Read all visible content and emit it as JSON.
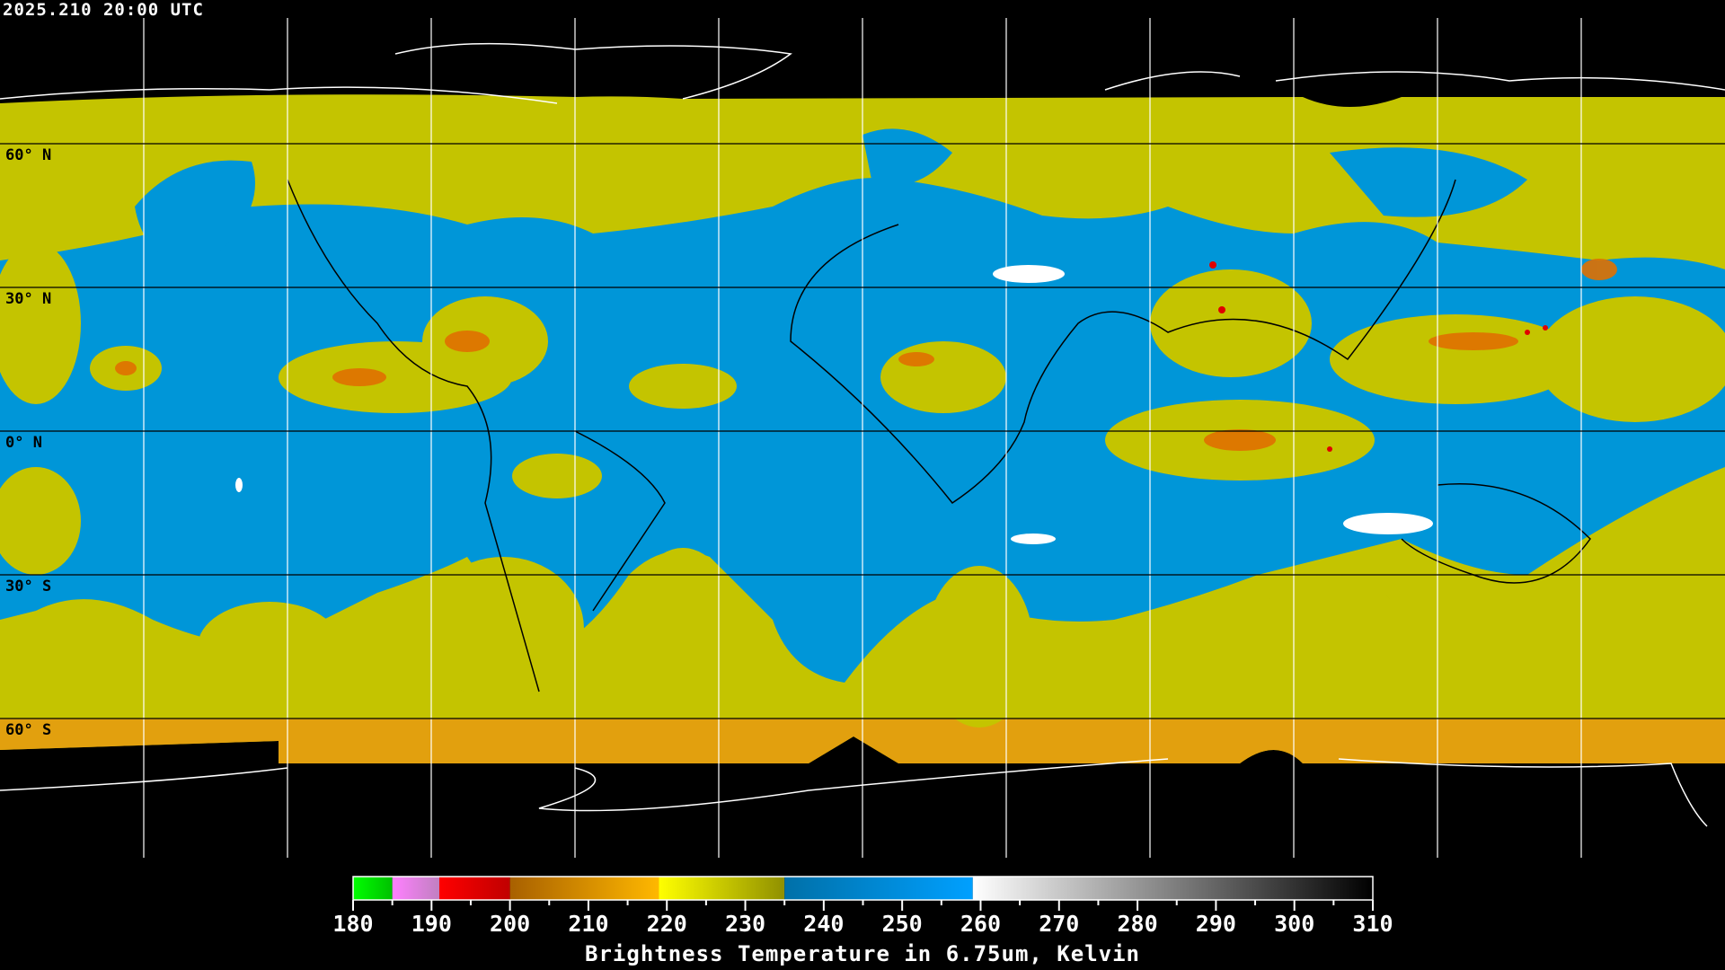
{
  "timestamp": "2025.210 20:00 UTC",
  "lat_labels": [
    "60° N",
    "30° N",
    "0° N",
    "30° S",
    "60° S"
  ],
  "colors": {
    "cloud_cold": "#c8c800",
    "clear_moist": "#0096dc",
    "very_cold": "#e07000",
    "extreme": "#e00000",
    "warm_dry": "#ffffff",
    "grid": "#ffffff",
    "coast": "#000000"
  },
  "colorbar": {
    "title": "Brightness Temperature in 6.75um, Kelvin",
    "min": 180,
    "max": 310,
    "tick_labels": [
      "180",
      "190",
      "200",
      "210",
      "220",
      "230",
      "240",
      "250",
      "260",
      "270",
      "280",
      "290",
      "300",
      "310"
    ],
    "segments": [
      {
        "from": 180,
        "to": 185,
        "c1": "#00ff00",
        "c2": "#00c000"
      },
      {
        "from": 185,
        "to": 191,
        "c1": "#ff80ff",
        "c2": "#c080c0"
      },
      {
        "from": 191,
        "to": 200,
        "c1": "#ff0000",
        "c2": "#c00000"
      },
      {
        "from": 200,
        "to": 219,
        "c1": "#a86000",
        "c2": "#ffb800"
      },
      {
        "from": 219,
        "to": 235,
        "c1": "#ffff00",
        "c2": "#909000"
      },
      {
        "from": 235,
        "to": 259,
        "c1": "#0070a8",
        "c2": "#00a0ff"
      },
      {
        "from": 259,
        "to": 310,
        "c1": "#ffffff",
        "c2": "#000000"
      }
    ]
  }
}
